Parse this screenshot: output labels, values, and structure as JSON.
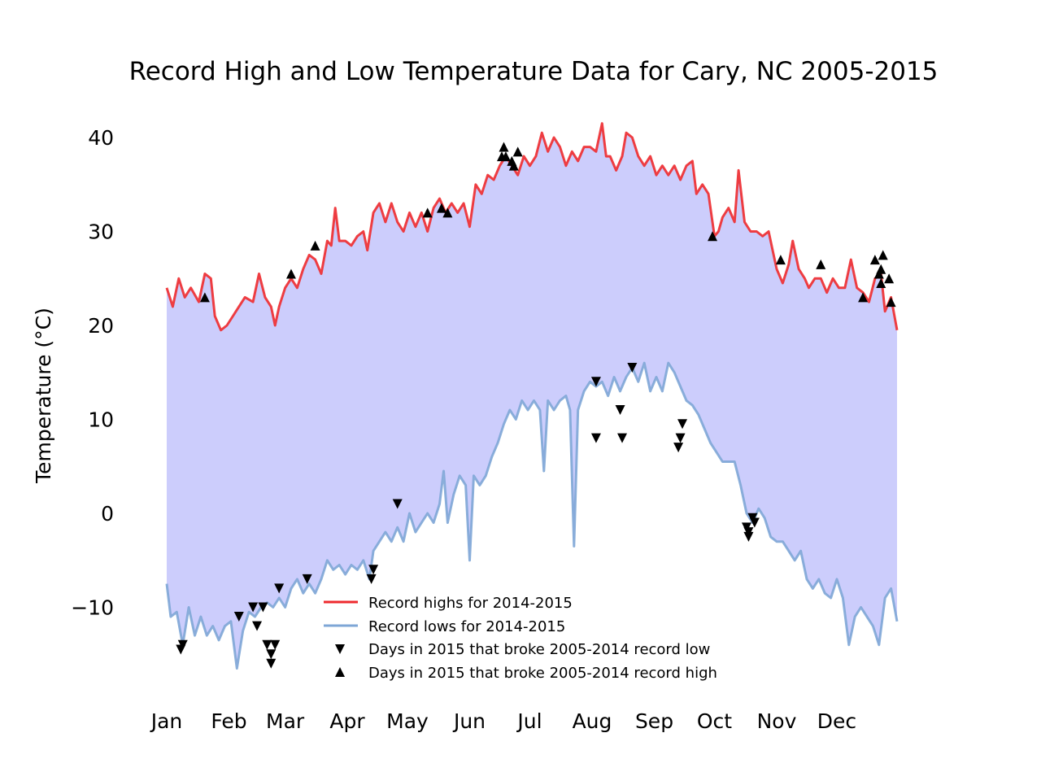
{
  "chart_data": {
    "type": "line",
    "title": "Record High and Low Temperature Data for Cary, NC 2005-2015",
    "xlabel": "",
    "ylabel": "Temperature (°C)",
    "x_ticks": [
      "Jan",
      "Feb",
      "Mar",
      "Apr",
      "May",
      "Jun",
      "Jul",
      "Aug",
      "Sep",
      "Oct",
      "Nov",
      "Dec"
    ],
    "y_ticks": [
      40,
      30,
      20,
      10,
      0,
      -10
    ],
    "xlim": [
      1,
      365
    ],
    "ylim": [
      -17,
      42
    ],
    "grid": false,
    "legend_position": "lower-center",
    "fill_between_color": "#cccdfc",
    "series": [
      {
        "name": "Record highs for 2014-2015",
        "kind": "line",
        "color": "#ee2a2e",
        "points": [
          [
            1,
            24
          ],
          [
            4,
            22
          ],
          [
            7,
            25
          ],
          [
            10,
            23
          ],
          [
            13,
            24
          ],
          [
            17,
            22.5
          ],
          [
            20,
            25.5
          ],
          [
            23,
            25
          ],
          [
            25,
            21
          ],
          [
            28,
            19.5
          ],
          [
            31,
            20
          ],
          [
            34,
            21
          ],
          [
            37,
            22
          ],
          [
            40,
            23
          ],
          [
            44,
            22.5
          ],
          [
            47,
            25.5
          ],
          [
            50,
            23
          ],
          [
            53,
            22
          ],
          [
            55,
            20
          ],
          [
            57,
            22
          ],
          [
            60,
            24
          ],
          [
            63,
            25
          ],
          [
            66,
            24
          ],
          [
            69,
            26
          ],
          [
            72,
            27.5
          ],
          [
            75,
            27
          ],
          [
            78,
            25.5
          ],
          [
            81,
            29
          ],
          [
            83,
            28.5
          ],
          [
            85,
            32.5
          ],
          [
            87,
            29
          ],
          [
            90,
            29
          ],
          [
            93,
            28.5
          ],
          [
            96,
            29.5
          ],
          [
            99,
            30
          ],
          [
            101,
            28
          ],
          [
            104,
            32
          ],
          [
            107,
            33
          ],
          [
            110,
            31
          ],
          [
            113,
            33
          ],
          [
            116,
            31
          ],
          [
            119,
            30
          ],
          [
            122,
            32
          ],
          [
            125,
            30.5
          ],
          [
            128,
            32
          ],
          [
            131,
            30
          ],
          [
            134,
            32.5
          ],
          [
            137,
            33.5
          ],
          [
            140,
            32
          ],
          [
            143,
            33
          ],
          [
            146,
            32
          ],
          [
            149,
            33
          ],
          [
            152,
            30.5
          ],
          [
            155,
            35
          ],
          [
            158,
            34
          ],
          [
            161,
            36
          ],
          [
            164,
            35.5
          ],
          [
            167,
            37
          ],
          [
            170,
            38
          ],
          [
            173,
            37
          ],
          [
            176,
            36
          ],
          [
            179,
            38
          ],
          [
            182,
            37
          ],
          [
            185,
            38
          ],
          [
            188,
            40.5
          ],
          [
            191,
            38.5
          ],
          [
            194,
            40
          ],
          [
            197,
            39
          ],
          [
            200,
            37
          ],
          [
            203,
            38.5
          ],
          [
            206,
            37.5
          ],
          [
            209,
            39
          ],
          [
            212,
            39
          ],
          [
            215,
            38.5
          ],
          [
            218,
            41.5
          ],
          [
            220,
            38
          ],
          [
            222,
            38
          ],
          [
            225,
            36.5
          ],
          [
            228,
            38
          ],
          [
            230,
            40.5
          ],
          [
            233,
            40
          ],
          [
            236,
            38
          ],
          [
            239,
            37
          ],
          [
            242,
            38
          ],
          [
            245,
            36
          ],
          [
            248,
            37
          ],
          [
            251,
            36
          ],
          [
            254,
            37
          ],
          [
            257,
            35.5
          ],
          [
            260,
            37
          ],
          [
            263,
            37.5
          ],
          [
            265,
            34
          ],
          [
            268,
            35
          ],
          [
            271,
            34
          ],
          [
            274,
            29.5
          ],
          [
            276,
            30
          ],
          [
            278,
            31.5
          ],
          [
            281,
            32.5
          ],
          [
            284,
            31
          ],
          [
            286,
            36.5
          ],
          [
            289,
            31
          ],
          [
            292,
            30
          ],
          [
            295,
            30
          ],
          [
            298,
            29.5
          ],
          [
            301,
            30
          ],
          [
            303,
            28
          ],
          [
            305,
            26
          ],
          [
            308,
            24.5
          ],
          [
            311,
            26.5
          ],
          [
            313,
            29
          ],
          [
            316,
            26
          ],
          [
            319,
            25
          ],
          [
            321,
            24
          ],
          [
            324,
            25
          ],
          [
            327,
            25
          ],
          [
            330,
            23.5
          ],
          [
            333,
            25
          ],
          [
            336,
            24
          ],
          [
            339,
            24
          ],
          [
            342,
            27
          ],
          [
            345,
            24
          ],
          [
            348,
            23.5
          ],
          [
            351,
            22.5
          ],
          [
            354,
            25
          ],
          [
            357,
            25.5
          ],
          [
            359,
            21.5
          ],
          [
            362,
            23
          ],
          [
            365,
            19.5
          ]
        ]
      },
      {
        "name": "Record lows for 2014-2015",
        "kind": "line",
        "color": "#7ea6d6",
        "points": [
          [
            1,
            -7.5
          ],
          [
            3,
            -11
          ],
          [
            6,
            -10.5
          ],
          [
            9,
            -14
          ],
          [
            12,
            -10
          ],
          [
            15,
            -13
          ],
          [
            18,
            -11
          ],
          [
            21,
            -13
          ],
          [
            24,
            -12
          ],
          [
            27,
            -13.5
          ],
          [
            30,
            -12
          ],
          [
            33,
            -11.5
          ],
          [
            36,
            -16.5
          ],
          [
            39,
            -12.5
          ],
          [
            42,
            -10.5
          ],
          [
            45,
            -11
          ],
          [
            48,
            -10
          ],
          [
            51,
            -9.5
          ],
          [
            54,
            -10
          ],
          [
            57,
            -9
          ],
          [
            60,
            -10
          ],
          [
            63,
            -8
          ],
          [
            66,
            -7
          ],
          [
            69,
            -8.5
          ],
          [
            72,
            -7.5
          ],
          [
            75,
            -8.5
          ],
          [
            78,
            -7
          ],
          [
            81,
            -5
          ],
          [
            84,
            -6
          ],
          [
            87,
            -5.5
          ],
          [
            90,
            -6.5
          ],
          [
            93,
            -5.5
          ],
          [
            96,
            -6
          ],
          [
            99,
            -5
          ],
          [
            102,
            -7
          ],
          [
            104,
            -4
          ],
          [
            107,
            -3
          ],
          [
            110,
            -2
          ],
          [
            113,
            -3
          ],
          [
            116,
            -1.5
          ],
          [
            119,
            -3
          ],
          [
            122,
            0
          ],
          [
            125,
            -2
          ],
          [
            128,
            -1
          ],
          [
            131,
            0
          ],
          [
            134,
            -1
          ],
          [
            137,
            1
          ],
          [
            139,
            4.5
          ],
          [
            141,
            -1
          ],
          [
            144,
            2
          ],
          [
            147,
            4
          ],
          [
            150,
            3
          ],
          [
            152,
            -5
          ],
          [
            154,
            4
          ],
          [
            157,
            3
          ],
          [
            160,
            4
          ],
          [
            163,
            6
          ],
          [
            166,
            7.5
          ],
          [
            169,
            9.5
          ],
          [
            172,
            11
          ],
          [
            175,
            10
          ],
          [
            178,
            12
          ],
          [
            181,
            11
          ],
          [
            184,
            12
          ],
          [
            187,
            11
          ],
          [
            189,
            4.5
          ],
          [
            191,
            12
          ],
          [
            194,
            11
          ],
          [
            197,
            12
          ],
          [
            200,
            12.5
          ],
          [
            202,
            11
          ],
          [
            204,
            -3.5
          ],
          [
            206,
            11
          ],
          [
            209,
            13
          ],
          [
            212,
            14
          ],
          [
            215,
            13.5
          ],
          [
            218,
            14
          ],
          [
            221,
            12.5
          ],
          [
            224,
            14.5
          ],
          [
            227,
            13
          ],
          [
            230,
            14.5
          ],
          [
            233,
            15.5
          ],
          [
            236,
            14
          ],
          [
            239,
            16
          ],
          [
            242,
            13
          ],
          [
            245,
            14.5
          ],
          [
            248,
            13
          ],
          [
            251,
            16
          ],
          [
            254,
            15
          ],
          [
            257,
            13.5
          ],
          [
            260,
            12
          ],
          [
            263,
            11.5
          ],
          [
            266,
            10.5
          ],
          [
            269,
            9
          ],
          [
            272,
            7.5
          ],
          [
            275,
            6.5
          ],
          [
            278,
            5.5
          ],
          [
            281,
            5.5
          ],
          [
            284,
            5.5
          ],
          [
            287,
            3
          ],
          [
            290,
            0
          ],
          [
            293,
            -1
          ],
          [
            296,
            0.5
          ],
          [
            299,
            -0.5
          ],
          [
            302,
            -2.5
          ],
          [
            305,
            -3
          ],
          [
            308,
            -3
          ],
          [
            311,
            -4
          ],
          [
            314,
            -5
          ],
          [
            317,
            -4
          ],
          [
            320,
            -7
          ],
          [
            323,
            -8
          ],
          [
            326,
            -7
          ],
          [
            329,
            -8.5
          ],
          [
            332,
            -9
          ],
          [
            335,
            -7
          ],
          [
            338,
            -9
          ],
          [
            341,
            -14
          ],
          [
            344,
            -11
          ],
          [
            347,
            -10
          ],
          [
            350,
            -11
          ],
          [
            353,
            -12
          ],
          [
            356,
            -14
          ],
          [
            359,
            -9
          ],
          [
            362,
            -8
          ],
          [
            365,
            -11.5
          ]
        ]
      },
      {
        "name": "Days in 2015 that broke 2005-2014 record low",
        "kind": "scatter",
        "marker": "triangle-down",
        "color": "#000000",
        "points": [
          [
            8,
            -14.5
          ],
          [
            9,
            -14
          ],
          [
            37,
            -11
          ],
          [
            44,
            -10
          ],
          [
            46,
            -12
          ],
          [
            49,
            -10
          ],
          [
            51,
            -14
          ],
          [
            53,
            -16
          ],
          [
            53,
            -15
          ],
          [
            55,
            -14
          ],
          [
            57,
            -8
          ],
          [
            71,
            -7
          ],
          [
            103,
            -7
          ],
          [
            104,
            -6
          ],
          [
            116,
            1
          ],
          [
            215,
            14
          ],
          [
            215,
            8
          ],
          [
            227,
            11
          ],
          [
            228,
            8
          ],
          [
            233,
            15.5
          ],
          [
            258,
            9.5
          ],
          [
            257,
            8
          ],
          [
            256,
            7
          ],
          [
            290,
            -1.5
          ],
          [
            291,
            -2
          ],
          [
            291,
            -2.5
          ],
          [
            293,
            -0.5
          ],
          [
            294,
            -1
          ]
        ]
      },
      {
        "name": "Days in 2015 that broke 2005-2014 record high",
        "kind": "scatter",
        "marker": "triangle-up",
        "color": "#000000",
        "points": [
          [
            20,
            23
          ],
          [
            63,
            25.5
          ],
          [
            75,
            28.5
          ],
          [
            131,
            32
          ],
          [
            138,
            32.5
          ],
          [
            141,
            32
          ],
          [
            168,
            38
          ],
          [
            170,
            38
          ],
          [
            169,
            39
          ],
          [
            174,
            37
          ],
          [
            173,
            37.5
          ],
          [
            176,
            38.5
          ],
          [
            273,
            29.5
          ],
          [
            307,
            27
          ],
          [
            327,
            26.5
          ],
          [
            348,
            23
          ],
          [
            354,
            27
          ],
          [
            357,
            26
          ],
          [
            356,
            25.5
          ],
          [
            358,
            27.5
          ],
          [
            357,
            24.5
          ],
          [
            361,
            25
          ],
          [
            362,
            22.5
          ]
        ]
      }
    ]
  }
}
